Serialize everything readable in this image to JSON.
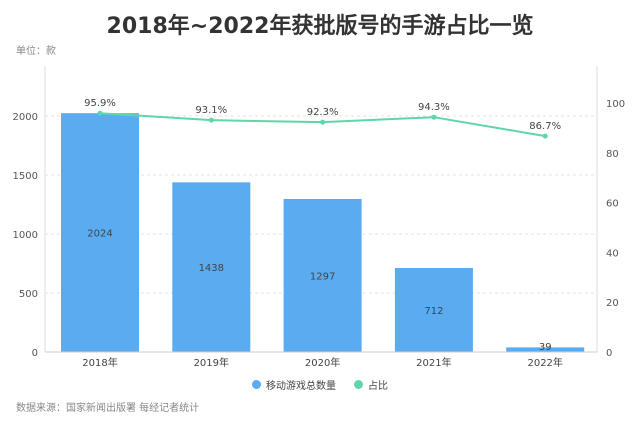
{
  "title": "2018年~2022年获批版号的手游占比一览",
  "unit": "单位：款",
  "source": "数据来源：国家新闻出版署 每经记者统计",
  "chart_data": {
    "type": "bar+line",
    "title": "2018年~2022年获批版号的手游占比一览",
    "categories": [
      "2018年",
      "2019年",
      "2020年",
      "2021年",
      "2022年"
    ],
    "series": [
      {
        "name": "移动游戏总数量",
        "type": "bar",
        "axis": "left",
        "color": "#5aabf0",
        "values": [
          2024,
          1438,
          1297,
          712,
          39
        ],
        "labels": [
          "2024",
          "1438",
          "1297",
          "712",
          "39"
        ]
      },
      {
        "name": "占比",
        "type": "line",
        "axis": "right",
        "color": "#5ed6a8",
        "values": [
          95.9,
          93.1,
          92.3,
          94.3,
          86.7
        ],
        "labels": [
          "95.9%",
          "93.1%",
          "92.3%",
          "94.3%",
          "86.7%"
        ]
      }
    ],
    "left_ticks": [
      "0",
      "500",
      "1000",
      "1500",
      "2000"
    ],
    "right_ticks": [
      "0",
      "20",
      "40",
      "60",
      "80",
      "100"
    ],
    "ylim_left": [
      0,
      2000
    ],
    "ylim_right": [
      0,
      100
    ],
    "legend_position": "bottom"
  }
}
